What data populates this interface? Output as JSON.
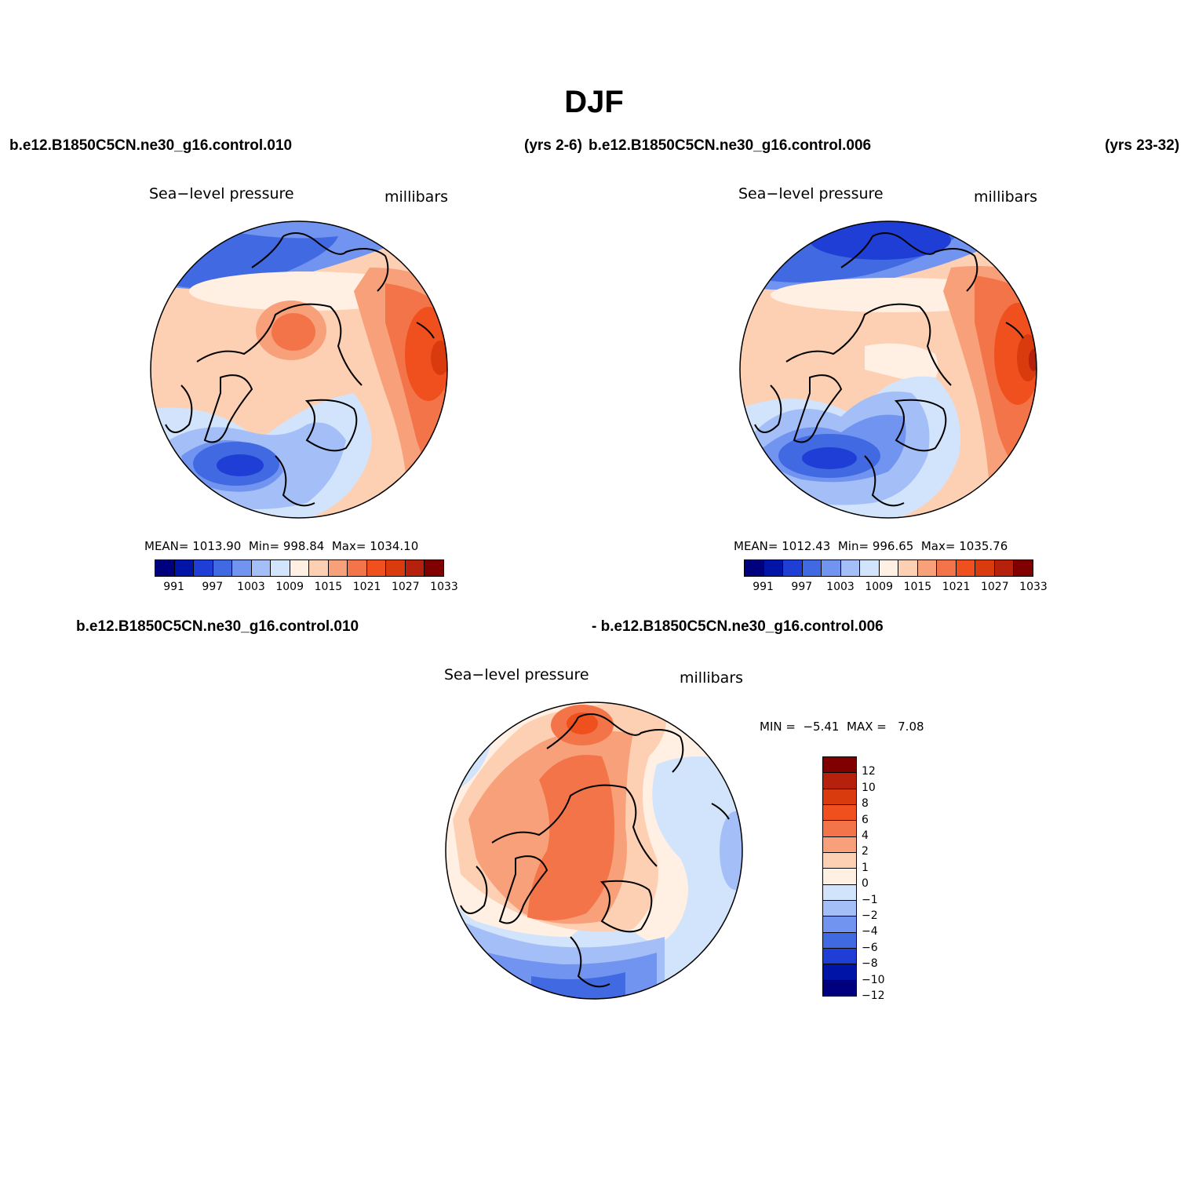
{
  "title": "DJF",
  "cases": {
    "case1": "b.e12.B1850C5CN.ne30_g16.control.010",
    "case1_years": "(yrs 2-6)",
    "case2": "b.e12.B1850C5CN.ne30_g16.control.006",
    "case2_years": "(yrs 23-32)",
    "diff_case1": "b.e12.B1850C5CN.ne30_g16.control.010",
    "diff_case2": "- b.e12.B1850C5CN.ne30_g16.control.006"
  },
  "panels": [
    {
      "variable": "Sea−level pressure",
      "units": "millibars",
      "mean_label": "MEAN=",
      "mean": "1013.90",
      "min_label": "Min=",
      "min": "998.84",
      "max_label": "Max=",
      "max": "1034.10"
    },
    {
      "variable": "Sea−level pressure",
      "units": "millibars",
      "mean_label": "MEAN=",
      "mean": "1012.43",
      "min_label": "Min=",
      "min": "996.65",
      "max_label": "Max=",
      "max": "1035.76"
    },
    {
      "variable": "Sea−level pressure",
      "units": "millibars",
      "min_label": "MIN =",
      "min": "−5.41",
      "max_label": "MAX =",
      "max": "7.08"
    }
  ],
  "colorbar_abs": {
    "labels": [
      "991",
      "997",
      "1003",
      "1009",
      "1015",
      "1021",
      "1027",
      "1033"
    ],
    "colors": [
      "#00007f",
      "#0014a8",
      "#1e3ed6",
      "#4169e1",
      "#7094f0",
      "#a4bef8",
      "#d2e4fb",
      "#fff0e3",
      "#fdcfb3",
      "#f8a07a",
      "#f47449",
      "#f0501e",
      "#d93a0e",
      "#b5210c",
      "#800000"
    ]
  },
  "colorbar_diff": {
    "labels": [
      "12",
      "10",
      "8",
      "6",
      "4",
      "2",
      "1",
      "0",
      "−1",
      "−2",
      "−4",
      "−6",
      "−8",
      "−10",
      "−12"
    ],
    "colors": [
      "#800000",
      "#b5210c",
      "#d93a0e",
      "#f0501e",
      "#f47449",
      "#f8a07a",
      "#fdcfb3",
      "#fff0e3",
      "#d2e4fb",
      "#a4bef8",
      "#7094f0",
      "#4169e1",
      "#1e3ed6",
      "#0014a8",
      "#00007f"
    ]
  }
}
